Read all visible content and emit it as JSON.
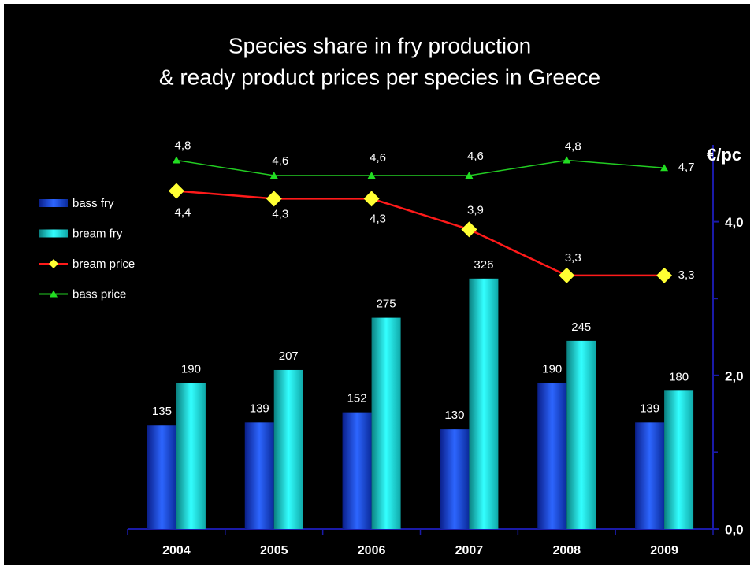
{
  "chart_data": {
    "type": "bar-line",
    "title": [
      "Species share in fry production",
      "& ready product prices per species in Greece"
    ],
    "categories": [
      "2004",
      "2005",
      "2006",
      "2007",
      "2008",
      "2009"
    ],
    "ylim": [
      0,
      500
    ],
    "y2lim": [
      0,
      5
    ],
    "y2label": "€/pc",
    "y2ticks": [
      {
        "value": 0,
        "label": "0,0"
      },
      {
        "value": 2,
        "label": "2,0"
      },
      {
        "value": 4,
        "label": "4,0"
      }
    ],
    "y2minor_ticks": [
      1,
      3
    ],
    "legend": "left",
    "series": [
      {
        "name": "bass fry",
        "type": "bar",
        "color": "#1f4fe0",
        "values": [
          135,
          139,
          152,
          130,
          190,
          139
        ]
      },
      {
        "name": "bream fry",
        "type": "bar",
        "color": "#19e6e6",
        "values": [
          190,
          207,
          275,
          326,
          245,
          180
        ]
      },
      {
        "name": "bream price",
        "type": "line",
        "axis": "y2",
        "color": "#ff1a1a",
        "marker_color": "#ffff33",
        "marker": "diamond",
        "values": [
          4.4,
          4.3,
          4.3,
          3.9,
          3.3,
          3.3
        ],
        "value_labels": [
          "4,4",
          "4,3",
          "4,3",
          "3,9",
          "3,3",
          "3,3"
        ]
      },
      {
        "name": "bass price",
        "type": "line",
        "axis": "y2",
        "color": "#22cc22",
        "marker_color": "#22dd22",
        "marker": "triangle",
        "values": [
          4.8,
          4.6,
          4.6,
          4.6,
          4.8,
          4.7
        ],
        "value_labels": [
          "4,8",
          "4,6",
          "4,6",
          "4,6",
          "4,8",
          "4,7"
        ]
      }
    ]
  }
}
